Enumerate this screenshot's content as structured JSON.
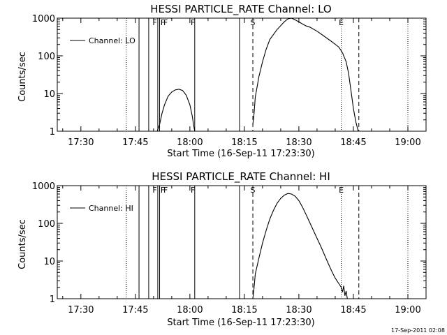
{
  "chart_data": [
    {
      "type": "line",
      "title": "HESSI PARTICLE_RATE Channel: LO",
      "xlabel": "Start Time (16-Sep-11 17:23:30)",
      "ylabel": "Counts/sec",
      "yscale": "log",
      "ylim": [
        1,
        1000
      ],
      "xlim": [
        "17:23:30",
        "19:05:00"
      ],
      "x_ticks": [
        "17:30",
        "17:45",
        "18:00",
        "18:15",
        "18:30",
        "18:45",
        "19:00"
      ],
      "y_ticks": [
        "1",
        "10",
        "100",
        "1000"
      ],
      "legend": {
        "label": "Channel: LO",
        "placement": "top-left"
      },
      "flags": [
        {
          "label": "F",
          "time": "17:50:20"
        },
        {
          "label": "F",
          "time": "17:52:30"
        },
        {
          "label": "F",
          "time": "17:53:20"
        },
        {
          "label": "F",
          "time": "18:00:50"
        },
        {
          "label": "S",
          "time": "18:17:20"
        },
        {
          "label": "E",
          "time": "18:41:40"
        }
      ],
      "markers": {
        "dotted": [
          "17:42:30",
          "18:41:40",
          "19:00:00"
        ],
        "solid": [
          "17:46:00",
          "17:48:40",
          "17:51:10",
          "17:51:40",
          "18:01:20",
          "18:13:40"
        ],
        "dashed": [
          "18:17:20",
          "18:46:30"
        ]
      },
      "series": [
        {
          "name": "Channel: LO",
          "segments": [
            {
              "time": [
                "17:51:00",
                "17:51:40",
                "17:52:20",
                "17:53:00",
                "17:54:00",
                "17:55:00",
                "17:56:00",
                "17:57:00",
                "17:58:00",
                "17:59:00",
                "18:00:00",
                "18:00:40",
                "18:01:00",
                "18:01:20"
              ],
              "values": [
                1.0,
                1.5,
                3.0,
                5.0,
                8.5,
                11.0,
                12.5,
                13.0,
                12.0,
                9.0,
                5.0,
                2.5,
                1.5,
                1.0
              ]
            },
            {
              "time": [
                "18:17:20",
                "18:17:40",
                "18:18:00",
                "18:19:00",
                "18:20:00",
                "18:21:00",
                "18:22:00",
                "18:24:00",
                "18:26:00",
                "18:27:00",
                "18:28:00",
                "18:29:00",
                "18:30:00",
                "18:31:00",
                "18:32:00",
                "18:33:00",
                "18:35:00",
                "18:37:00",
                "18:39:00",
                "18:41:00",
                "18:42:00",
                "18:43:00",
                "18:43:40",
                "18:44:20",
                "18:45:00",
                "18:45:40",
                "18:46:20"
              ],
              "values": [
                1.5,
                3.0,
                8.0,
                28,
                70,
                150,
                270,
                500,
                800,
                960,
                1000,
                900,
                800,
                700,
                620,
                580,
                450,
                330,
                240,
                170,
                120,
                70,
                35,
                12,
                4.0,
                1.8,
                1.0
              ]
            }
          ]
        }
      ]
    },
    {
      "type": "line",
      "title": "HESSI PARTICLE_RATE Channel: HI",
      "xlabel": "Start Time (16-Sep-11 17:23:30)",
      "ylabel": "Counts/sec",
      "yscale": "log",
      "ylim": [
        1,
        1000
      ],
      "xlim": [
        "17:23:30",
        "19:05:00"
      ],
      "x_ticks": [
        "17:30",
        "17:45",
        "18:00",
        "18:15",
        "18:30",
        "18:45",
        "19:00"
      ],
      "y_ticks": [
        "1",
        "10",
        "100",
        "1000"
      ],
      "legend": {
        "label": "Channel: HI",
        "placement": "top-left"
      },
      "flags": [
        {
          "label": "F",
          "time": "17:50:20"
        },
        {
          "label": "F",
          "time": "17:52:30"
        },
        {
          "label": "F",
          "time": "17:53:20"
        },
        {
          "label": "F",
          "time": "18:00:50"
        },
        {
          "label": "S",
          "time": "18:17:20"
        },
        {
          "label": "E",
          "time": "18:41:40"
        }
      ],
      "markers": {
        "dotted": [
          "17:42:30",
          "18:41:40",
          "19:00:00"
        ],
        "solid": [
          "17:46:00",
          "17:48:40",
          "17:51:10",
          "17:51:40",
          "18:01:20",
          "18:13:40"
        ],
        "dashed": [
          "18:17:20",
          "18:46:30"
        ]
      },
      "series": [
        {
          "name": "Channel: HI",
          "segments": [
            {
              "time": [
                "18:17:20",
                "18:17:40",
                "18:18:00",
                "18:19:00",
                "18:20:00",
                "18:21:00",
                "18:22:00",
                "18:23:00",
                "18:24:00",
                "18:25:00",
                "18:26:00",
                "18:27:00",
                "18:28:00",
                "18:29:00",
                "18:30:00",
                "18:31:00",
                "18:32:00",
                "18:33:00",
                "18:34:00",
                "18:35:00",
                "18:36:00",
                "18:37:00",
                "18:38:00",
                "18:39:00",
                "18:40:00",
                "18:41:00",
                "18:41:40",
                "18:42:00",
                "18:42:20",
                "18:42:40",
                "18:43:00",
                "18:43:20"
              ],
              "values": [
                1.0,
                2.0,
                4.5,
                12,
                30,
                65,
                130,
                220,
                340,
                460,
                560,
                620,
                600,
                520,
                400,
                270,
                170,
                105,
                65,
                40,
                25,
                15,
                9.0,
                5.5,
                3.5,
                2.5,
                2.0,
                1.5,
                2.2,
                1.2,
                1.6,
                1.0
              ]
            }
          ]
        }
      ]
    }
  ],
  "footer": {
    "timestamp": "17-Sep-2011 02:08"
  }
}
